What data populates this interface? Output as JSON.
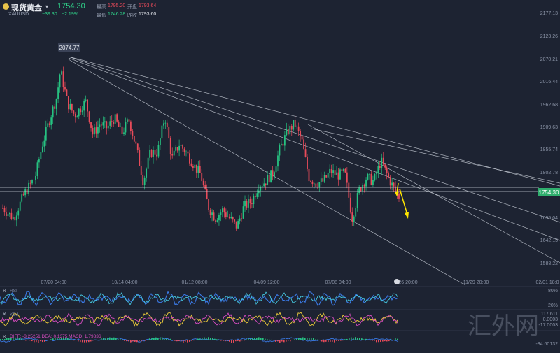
{
  "header": {
    "symbol_name": "现货黄金",
    "symbol_code": "XAUUSD",
    "last_price": "1754.30",
    "change": "−39.30",
    "change_pct": "−2.19%",
    "high_label": "最高",
    "high_value": "1795.20",
    "open_label": "开盘",
    "open_value": "1793.64",
    "low_label": "最低",
    "low_value": "1746.28",
    "prev_label": "昨收",
    "prev_value": "1793.60"
  },
  "watermark": "汇外网",
  "colors": {
    "background": "#1d2332",
    "up": "#26c281",
    "down": "#e84b5a",
    "price_tag": "#2fae6d",
    "arrow": "#ffe600",
    "trendline": "#c7ccd6",
    "osc_blue": "#3b7be8",
    "osc_cyan": "#45c8e0",
    "osc_yellow": "#e5c53a",
    "osc_pink": "#d94dc2",
    "macd_blue": "#3b7be8"
  },
  "chart_data": {
    "type": "candlestick",
    "title": "",
    "price_axis_ticks": [
      "2177.13",
      "2123.26",
      "2070.21",
      "2016.44",
      "1962.68",
      "1909.63",
      "1855.74",
      "1802.78",
      "1695.04",
      "1642.15",
      "1588.22"
    ],
    "time_axis_ticks": [
      "07/20 04:00",
      "10/14 04:00",
      "01/12 08:00",
      "04/09 12:00",
      "07/08 04:00",
      "/26 20:00",
      "11/29 20:00",
      "02/01 18:0"
    ],
    "current_price": "1754.30",
    "peak_label": "2074.77",
    "ylim": [
      1560,
      2200
    ],
    "price_path": [
      {
        "t": 0,
        "p": 1725
      },
      {
        "t": 3,
        "p": 1700
      },
      {
        "t": 6,
        "p": 1760
      },
      {
        "t": 9,
        "p": 1800
      },
      {
        "t": 11,
        "p": 1880
      },
      {
        "t": 13,
        "p": 1940
      },
      {
        "t": 15,
        "p": 1995
      },
      {
        "t": 16,
        "p": 2060
      },
      {
        "t": 18,
        "p": 1980
      },
      {
        "t": 20,
        "p": 1950
      },
      {
        "t": 23,
        "p": 1985
      },
      {
        "t": 25,
        "p": 1905
      },
      {
        "t": 27,
        "p": 1930
      },
      {
        "t": 29,
        "p": 1920
      },
      {
        "t": 31,
        "p": 1945
      },
      {
        "t": 33,
        "p": 1905
      },
      {
        "t": 35,
        "p": 1940
      },
      {
        "t": 37,
        "p": 1875
      },
      {
        "t": 39,
        "p": 1790
      },
      {
        "t": 41,
        "p": 1860
      },
      {
        "t": 43,
        "p": 1860
      },
      {
        "t": 45,
        "p": 1950
      },
      {
        "t": 47,
        "p": 1845
      },
      {
        "t": 49,
        "p": 1880
      },
      {
        "t": 51,
        "p": 1860
      },
      {
        "t": 53,
        "p": 1830
      },
      {
        "t": 55,
        "p": 1805
      },
      {
        "t": 57,
        "p": 1730
      },
      {
        "t": 59,
        "p": 1700
      },
      {
        "t": 61,
        "p": 1720
      },
      {
        "t": 63,
        "p": 1700
      },
      {
        "t": 65,
        "p": 1680
      },
      {
        "t": 67,
        "p": 1730
      },
      {
        "t": 69,
        "p": 1740
      },
      {
        "t": 71,
        "p": 1780
      },
      {
        "t": 73,
        "p": 1790
      },
      {
        "t": 75,
        "p": 1810
      },
      {
        "t": 77,
        "p": 1870
      },
      {
        "t": 79,
        "p": 1910
      },
      {
        "t": 81,
        "p": 1930
      },
      {
        "t": 83,
        "p": 1890
      },
      {
        "t": 85,
        "p": 1800
      },
      {
        "t": 87,
        "p": 1785
      },
      {
        "t": 89,
        "p": 1790
      },
      {
        "t": 91,
        "p": 1815
      },
      {
        "t": 93,
        "p": 1805
      },
      {
        "t": 95,
        "p": 1810
      },
      {
        "t": 97,
        "p": 1700
      },
      {
        "t": 99,
        "p": 1770
      },
      {
        "t": 101,
        "p": 1800
      },
      {
        "t": 103,
        "p": 1790
      },
      {
        "t": 105,
        "p": 1840
      },
      {
        "t": 107,
        "p": 1800
      },
      {
        "t": 109,
        "p": 1765
      },
      {
        "t": 110,
        "p": 1754
      }
    ],
    "oscillators": {
      "rsi_axis": [
        "80%",
        "20%"
      ],
      "kdj_axis": [
        "117.611",
        "0.0003",
        "-17.0003"
      ],
      "macd_axis": [
        "-34.60132"
      ],
      "labels": [
        "RSI",
        "KDJ",
        "DIFF: -3.25251  DEA: 0.1375  MACD: 1.79836"
      ]
    }
  }
}
